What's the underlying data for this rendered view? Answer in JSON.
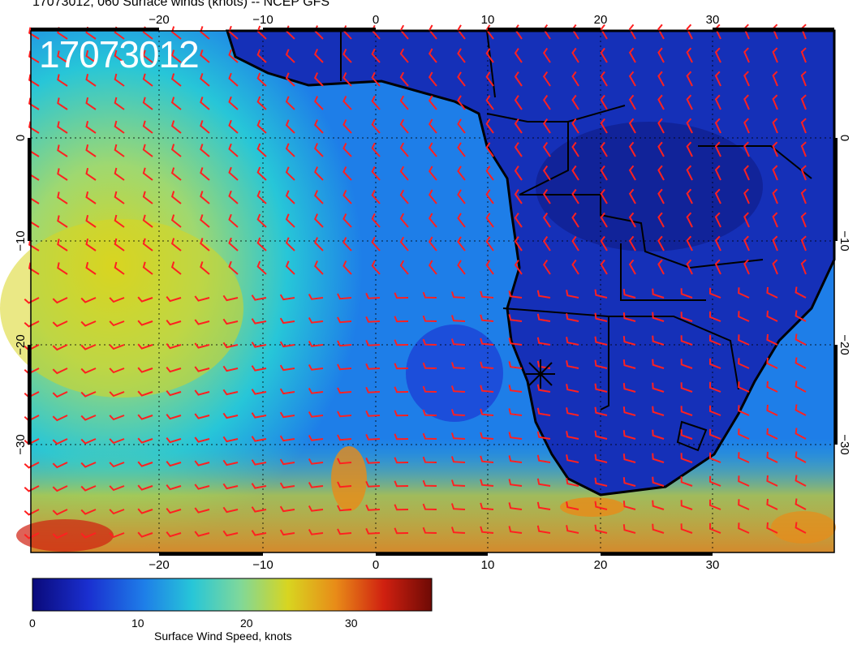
{
  "header": {
    "title": "17073012, 060 Surface winds (knots) -- NCEP GFS"
  },
  "map": {
    "timestamp_label": "17073012",
    "lon_ticks": [
      "−20",
      "−10",
      "0",
      "10",
      "20",
      "30"
    ],
    "lat_ticks": [
      "0",
      "−10",
      "−20",
      "−30"
    ],
    "barb_color": "#ff2020",
    "border_color": "#000000",
    "marker_symbol": "star-marker"
  },
  "colorbar": {
    "title": "Surface Wind Speed, knots",
    "ticks": [
      "0",
      "10",
      "20",
      "30"
    ],
    "min": 0,
    "max": 38,
    "colors": [
      "#0a0a7a",
      "#1a2fd0",
      "#1e7ee8",
      "#27c6d8",
      "#7fd89a",
      "#d8d520",
      "#e88b18",
      "#d02010",
      "#6e0a05"
    ]
  }
}
